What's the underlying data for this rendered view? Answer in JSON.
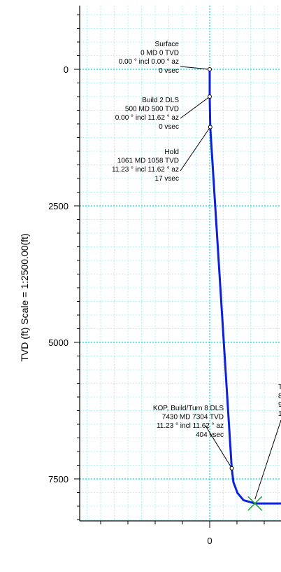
{
  "chart_data": {
    "type": "line",
    "title": "",
    "xlabel": "",
    "ylabel": "TVD (ft) Scale = 1:2500.00(ft)",
    "x_tick_labels": [
      {
        "value": 0,
        "label": "0"
      }
    ],
    "y_tick_labels": [
      {
        "value": 0,
        "label": "0"
      },
      {
        "value": 2500,
        "label": "2500"
      },
      {
        "value": 5000,
        "label": "5000"
      },
      {
        "value": 7500,
        "label": "7500"
      }
    ],
    "xlim": [
      -2400,
      1300
    ],
    "ylim": [
      -1150,
      8550
    ],
    "y_inverted": true,
    "grid": true,
    "major_grid_color": "#00d8e0",
    "minor_grid_color": "#9ff0f3",
    "line_color": "#0b22d8",
    "target_marker_color": "#1a9e2a",
    "series": [
      {
        "points": [
          {
            "x": 0,
            "y": 0
          },
          {
            "x": 0,
            "y": 500
          },
          {
            "x": 10,
            "y": 1058
          },
          {
            "x": 404,
            "y": 7304
          },
          {
            "x": 435,
            "y": 7560
          },
          {
            "x": 510,
            "y": 7760
          },
          {
            "x": 620,
            "y": 7890
          },
          {
            "x": 830,
            "y": 7950
          },
          {
            "x": 1300,
            "y": 7950
          }
        ]
      }
    ],
    "stations": [
      {
        "x": 0,
        "y": 0,
        "lines": [
          "Surface",
          "0 MD 0 TVD",
          "0.00 ° incl 0.00 ° az",
          "0 vsec"
        ]
      },
      {
        "x": 0,
        "y": 500,
        "lines": [
          "Build 2 DLS",
          "500 MD 500 TVD",
          "0.00 ° incl 11.62 ° az",
          "0 vsec"
        ]
      },
      {
        "x": 10,
        "y": 1058,
        "lines": [
          "Hold",
          "1061 MD 1058 TVD",
          "11.23 ° incl 11.62 ° az",
          "17 vsec"
        ]
      },
      {
        "x": 404,
        "y": 7304,
        "lines": [
          "KOP, Build/Turn 8 DLS",
          "7430 MD 7304 TVD",
          "11.23 ° incl 11.62 ° az",
          "404 vsec"
        ]
      }
    ],
    "clipped_annotation": {
      "x": 830,
      "y": 7950,
      "lines": [
        "T",
        "8",
        "9",
        "1"
      ]
    },
    "target_marker": {
      "x": 830,
      "y": 7950,
      "shape": "x"
    }
  }
}
